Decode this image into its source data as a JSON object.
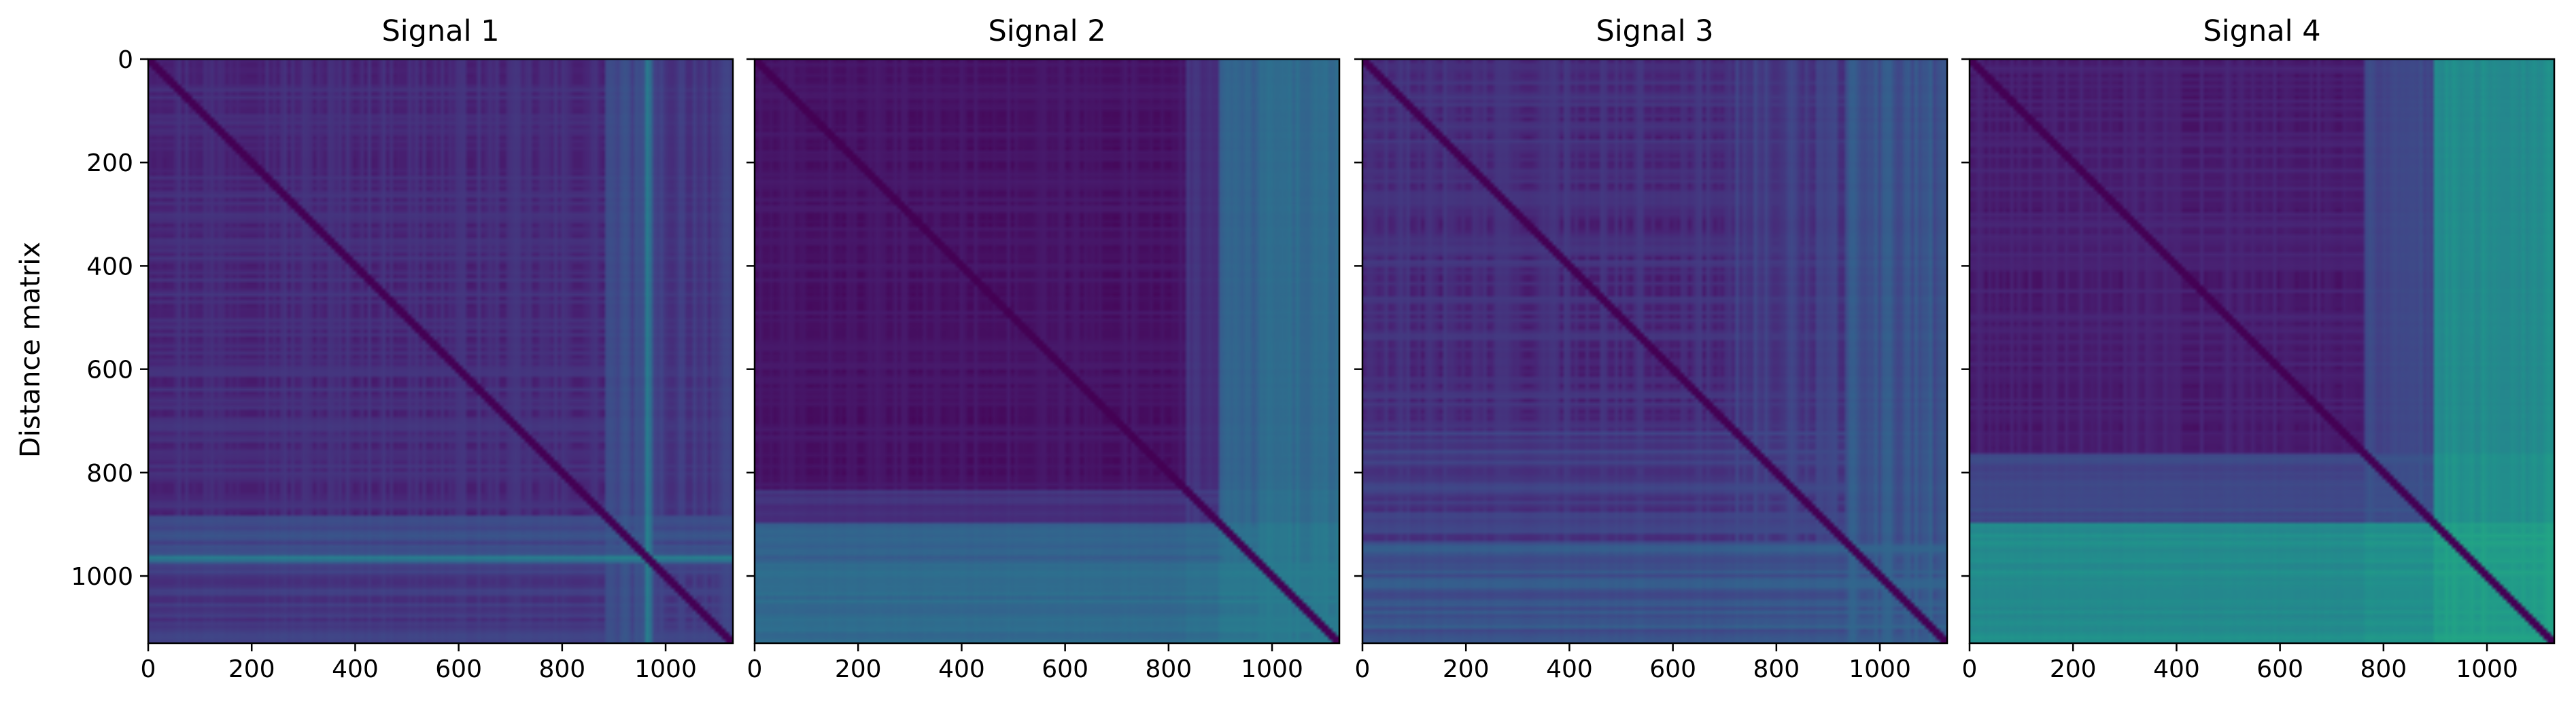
{
  "figure": {
    "ylabel": "Distance matrix"
  },
  "chart_data": [
    {
      "type": "heatmap",
      "title": "Signal 1",
      "colormap": "viridis",
      "size": 1130,
      "xlim": [
        0,
        1130
      ],
      "ylim": [
        1130,
        0
      ],
      "xticks": [
        0,
        200,
        400,
        600,
        800,
        1000
      ],
      "yticks": [
        0,
        200,
        400,
        600,
        800,
        1000
      ],
      "xtick_labels": [
        "0",
        "200",
        "400",
        "600",
        "800",
        "1000"
      ],
      "ytick_labels": [
        "0",
        "200",
        "400",
        "600",
        "800",
        "1000"
      ],
      "structure": {
        "base_level": 0.15,
        "bands": [
          {
            "from": 880,
            "to": 960,
            "level": 0.3
          },
          {
            "from": 960,
            "to": 975,
            "level": 0.55
          },
          {
            "from": 975,
            "to": 1130,
            "level": 0.22
          }
        ],
        "noise": 0.06
      }
    },
    {
      "type": "heatmap",
      "title": "Signal 2",
      "colormap": "viridis",
      "size": 1130,
      "xlim": [
        0,
        1130
      ],
      "ylim": [
        1130,
        0
      ],
      "xticks": [
        0,
        200,
        400,
        600,
        800,
        1000
      ],
      "yticks": [
        0,
        200,
        400,
        600,
        800,
        1000
      ],
      "xtick_labels": [
        "0",
        "200",
        "400",
        "600",
        "800",
        "1000"
      ],
      "ytick_labels": [
        "0",
        "200",
        "400",
        "600",
        "800",
        "1000"
      ],
      "structure": {
        "base_level": 0.06,
        "bands": [
          {
            "from": 830,
            "to": 900,
            "level": 0.2
          },
          {
            "from": 900,
            "to": 975,
            "level": 0.45
          },
          {
            "from": 975,
            "to": 1130,
            "level": 0.5
          }
        ],
        "noise": 0.04
      }
    },
    {
      "type": "heatmap",
      "title": "Signal 3",
      "colormap": "viridis",
      "size": 1130,
      "xlim": [
        0,
        1130
      ],
      "ylim": [
        1130,
        0
      ],
      "xticks": [
        0,
        200,
        400,
        600,
        800,
        1000
      ],
      "yticks": [
        0,
        200,
        400,
        600,
        800,
        1000
      ],
      "xtick_labels": [
        "0",
        "200",
        "400",
        "600",
        "800",
        "1000"
      ],
      "ytick_labels": [
        "0",
        "200",
        "400",
        "600",
        "800",
        "1000"
      ],
      "structure": {
        "base_level": 0.15,
        "bands": [
          {
            "from": 700,
            "to": 930,
            "level": 0.22
          },
          {
            "from": 930,
            "to": 1130,
            "level": 0.35
          }
        ],
        "noise": 0.07
      }
    },
    {
      "type": "heatmap",
      "title": "Signal 4",
      "colormap": "viridis",
      "size": 1130,
      "xlim": [
        0,
        1130
      ],
      "ylim": [
        1130,
        0
      ],
      "xticks": [
        0,
        200,
        400,
        600,
        800,
        1000
      ],
      "yticks": [
        0,
        200,
        400,
        600,
        800,
        1000
      ],
      "xtick_labels": [
        "0",
        "200",
        "400",
        "600",
        "800",
        "1000"
      ],
      "ytick_labels": [
        "0",
        "200",
        "400",
        "600",
        "800",
        "1000"
      ],
      "structure": {
        "base_level": 0.1,
        "bands": [
          {
            "from": 760,
            "to": 900,
            "level": 0.3
          },
          {
            "from": 900,
            "to": 1130,
            "level": 0.7
          }
        ],
        "noise": 0.05
      }
    }
  ]
}
